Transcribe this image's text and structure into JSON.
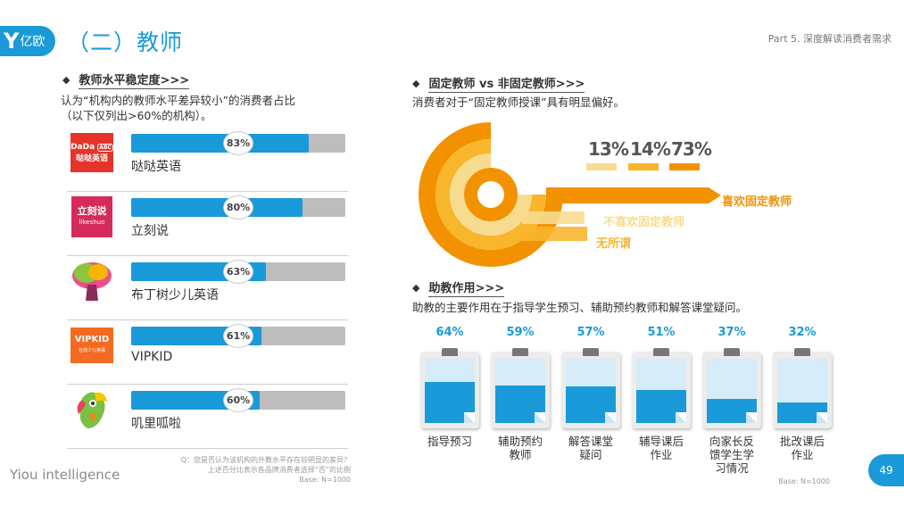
{
  "header": {
    "logo_text": "亿欧",
    "title": "（二）教师",
    "part": "Part 5. 深度解读消费者需求"
  },
  "left": {
    "section_title": "教师水平稳定度>>>",
    "desc_line1": "认为“机构内的教师水平差异较小”的消费者占比",
    "desc_line2": "（以下仅列出>60%的机构）。",
    "footnote_line1": "Q：您是否认为该机构的外教水平存在较明显的差异？",
    "footnote_line2": "上述百分比表示各品牌消费者选择“否”的比例",
    "footnote_line3": "Base: N=1000"
  },
  "right_top": {
    "section_title": "固定教师 vs 非固定教师>>>",
    "desc": "消费者对于“固定教师授课”具有明显偏好。"
  },
  "right_bottom": {
    "section_title": "助教作用>>>",
    "desc": "助教的主要作用在于指导学生预习、辅助预约教师和解答课堂疑问。",
    "base": "Base: N=1000"
  },
  "footer": {
    "watermark": "Yiou intelligence",
    "page_number": "49"
  },
  "brand_logos": {
    "dada_line1": "DaDa",
    "dada_badge": "ABC",
    "dada_line2": "哒哒英语",
    "likeshuo_line1": "立刻说",
    "likeshuo_line2": "likeshuo",
    "vipkid": "VIPKID",
    "vipkid_sub": "在线少儿英语",
    "dada_color": "#e5332a",
    "likeshuo_color": "#d62a5a",
    "vipkid_color": "#f26b21"
  },
  "colors": {
    "primary": "#1a9ad8",
    "track": "#bdbdbd",
    "orange_dark": "#f39200",
    "orange_mid": "#f8b62d",
    "orange_light": "#f7dc8f"
  },
  "chart_data": [
    {
      "type": "bar",
      "orientation": "horizontal",
      "categories": [
        "哒哒英语",
        "立刻说",
        "布丁树少儿英语",
        "VIPKID",
        "叽里呱啦"
      ],
      "values": [
        83,
        80,
        63,
        61,
        60
      ],
      "value_labels": [
        "83%",
        "80%",
        "63%",
        "61%",
        "60%"
      ],
      "ylim": [
        0,
        100
      ]
    },
    {
      "type": "pie",
      "style": "concentric-arcs",
      "categories": [
        "不喜欢固定教师",
        "无所谓",
        "喜欢固定教师"
      ],
      "values": [
        13,
        14,
        73
      ],
      "value_labels": [
        "13%",
        "14%",
        "73%"
      ]
    },
    {
      "type": "bar",
      "style": "clipboard-fill",
      "categories": [
        "指导预习",
        "辅助预约教师",
        "解答课堂疑问",
        "辅导课后作业",
        "向家长反馈学生学习情况",
        "批改课后作业"
      ],
      "label_lines": [
        [
          "指导预习"
        ],
        [
          "辅助预约",
          "教师"
        ],
        [
          "解答课堂",
          "疑问"
        ],
        [
          "辅导课后",
          "作业"
        ],
        [
          "向家长反",
          "馈学生学",
          "习情况"
        ],
        [
          "批改课后",
          "作业"
        ]
      ],
      "values": [
        64,
        59,
        57,
        51,
        37,
        32
      ],
      "value_labels": [
        "64%",
        "59%",
        "57%",
        "51%",
        "37%",
        "32%"
      ],
      "ylim": [
        0,
        100
      ]
    }
  ]
}
